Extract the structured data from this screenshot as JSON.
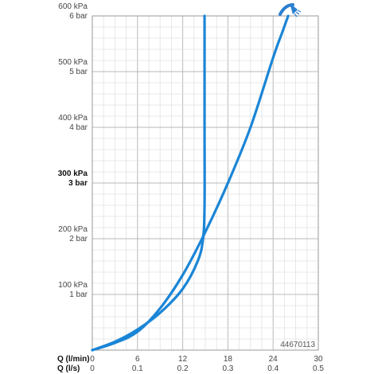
{
  "chart_data": {
    "type": "line",
    "x_unit_label": "Q (l/min)",
    "x2_unit_label": "Q (l/s)",
    "x_ticks": [
      0,
      6,
      12,
      18,
      24,
      30
    ],
    "x2_ticks": [
      "0",
      "0.1",
      "0.2",
      "0.3",
      "0.4",
      "0.5"
    ],
    "xlim": [
      0,
      30
    ],
    "ylim": [
      0,
      600
    ],
    "y_ticks": [
      {
        "value": 100,
        "kpa": "100 kPa",
        "bar": "1 bar",
        "bold": false
      },
      {
        "value": 200,
        "kpa": "200 kPa",
        "bar": "2 bar",
        "bold": false
      },
      {
        "value": 300,
        "kpa": "300 kPa",
        "bar": "3 bar",
        "bold": true
      },
      {
        "value": 400,
        "kpa": "400 kPa",
        "bar": "4 bar",
        "bold": false
      },
      {
        "value": 500,
        "kpa": "500 kPa",
        "bar": "5 bar",
        "bold": false
      },
      {
        "value": 600,
        "kpa": "600 kPa",
        "bar": "6 bar",
        "bold": false
      }
    ],
    "grid": true,
    "series": [
      {
        "color": "#1a85d6",
        "x": [
          0,
          3,
          6,
          9,
          12,
          15,
          18,
          21,
          24,
          25.2,
          26
        ],
        "y": [
          0,
          13,
          33,
          75,
          135,
          212,
          300,
          400,
          525,
          570,
          600
        ]
      },
      {
        "color": "#1a85d6",
        "x": [
          0,
          3,
          6,
          9,
          12,
          14,
          14.7,
          14.9,
          14.9,
          14.9
        ],
        "y": [
          0,
          15,
          37,
          67,
          110,
          160,
          200,
          260,
          400,
          600
        ]
      }
    ],
    "annotation": "44670113"
  },
  "logo": {
    "icon": "shower-head-icon",
    "color": "#2a7fd0"
  }
}
